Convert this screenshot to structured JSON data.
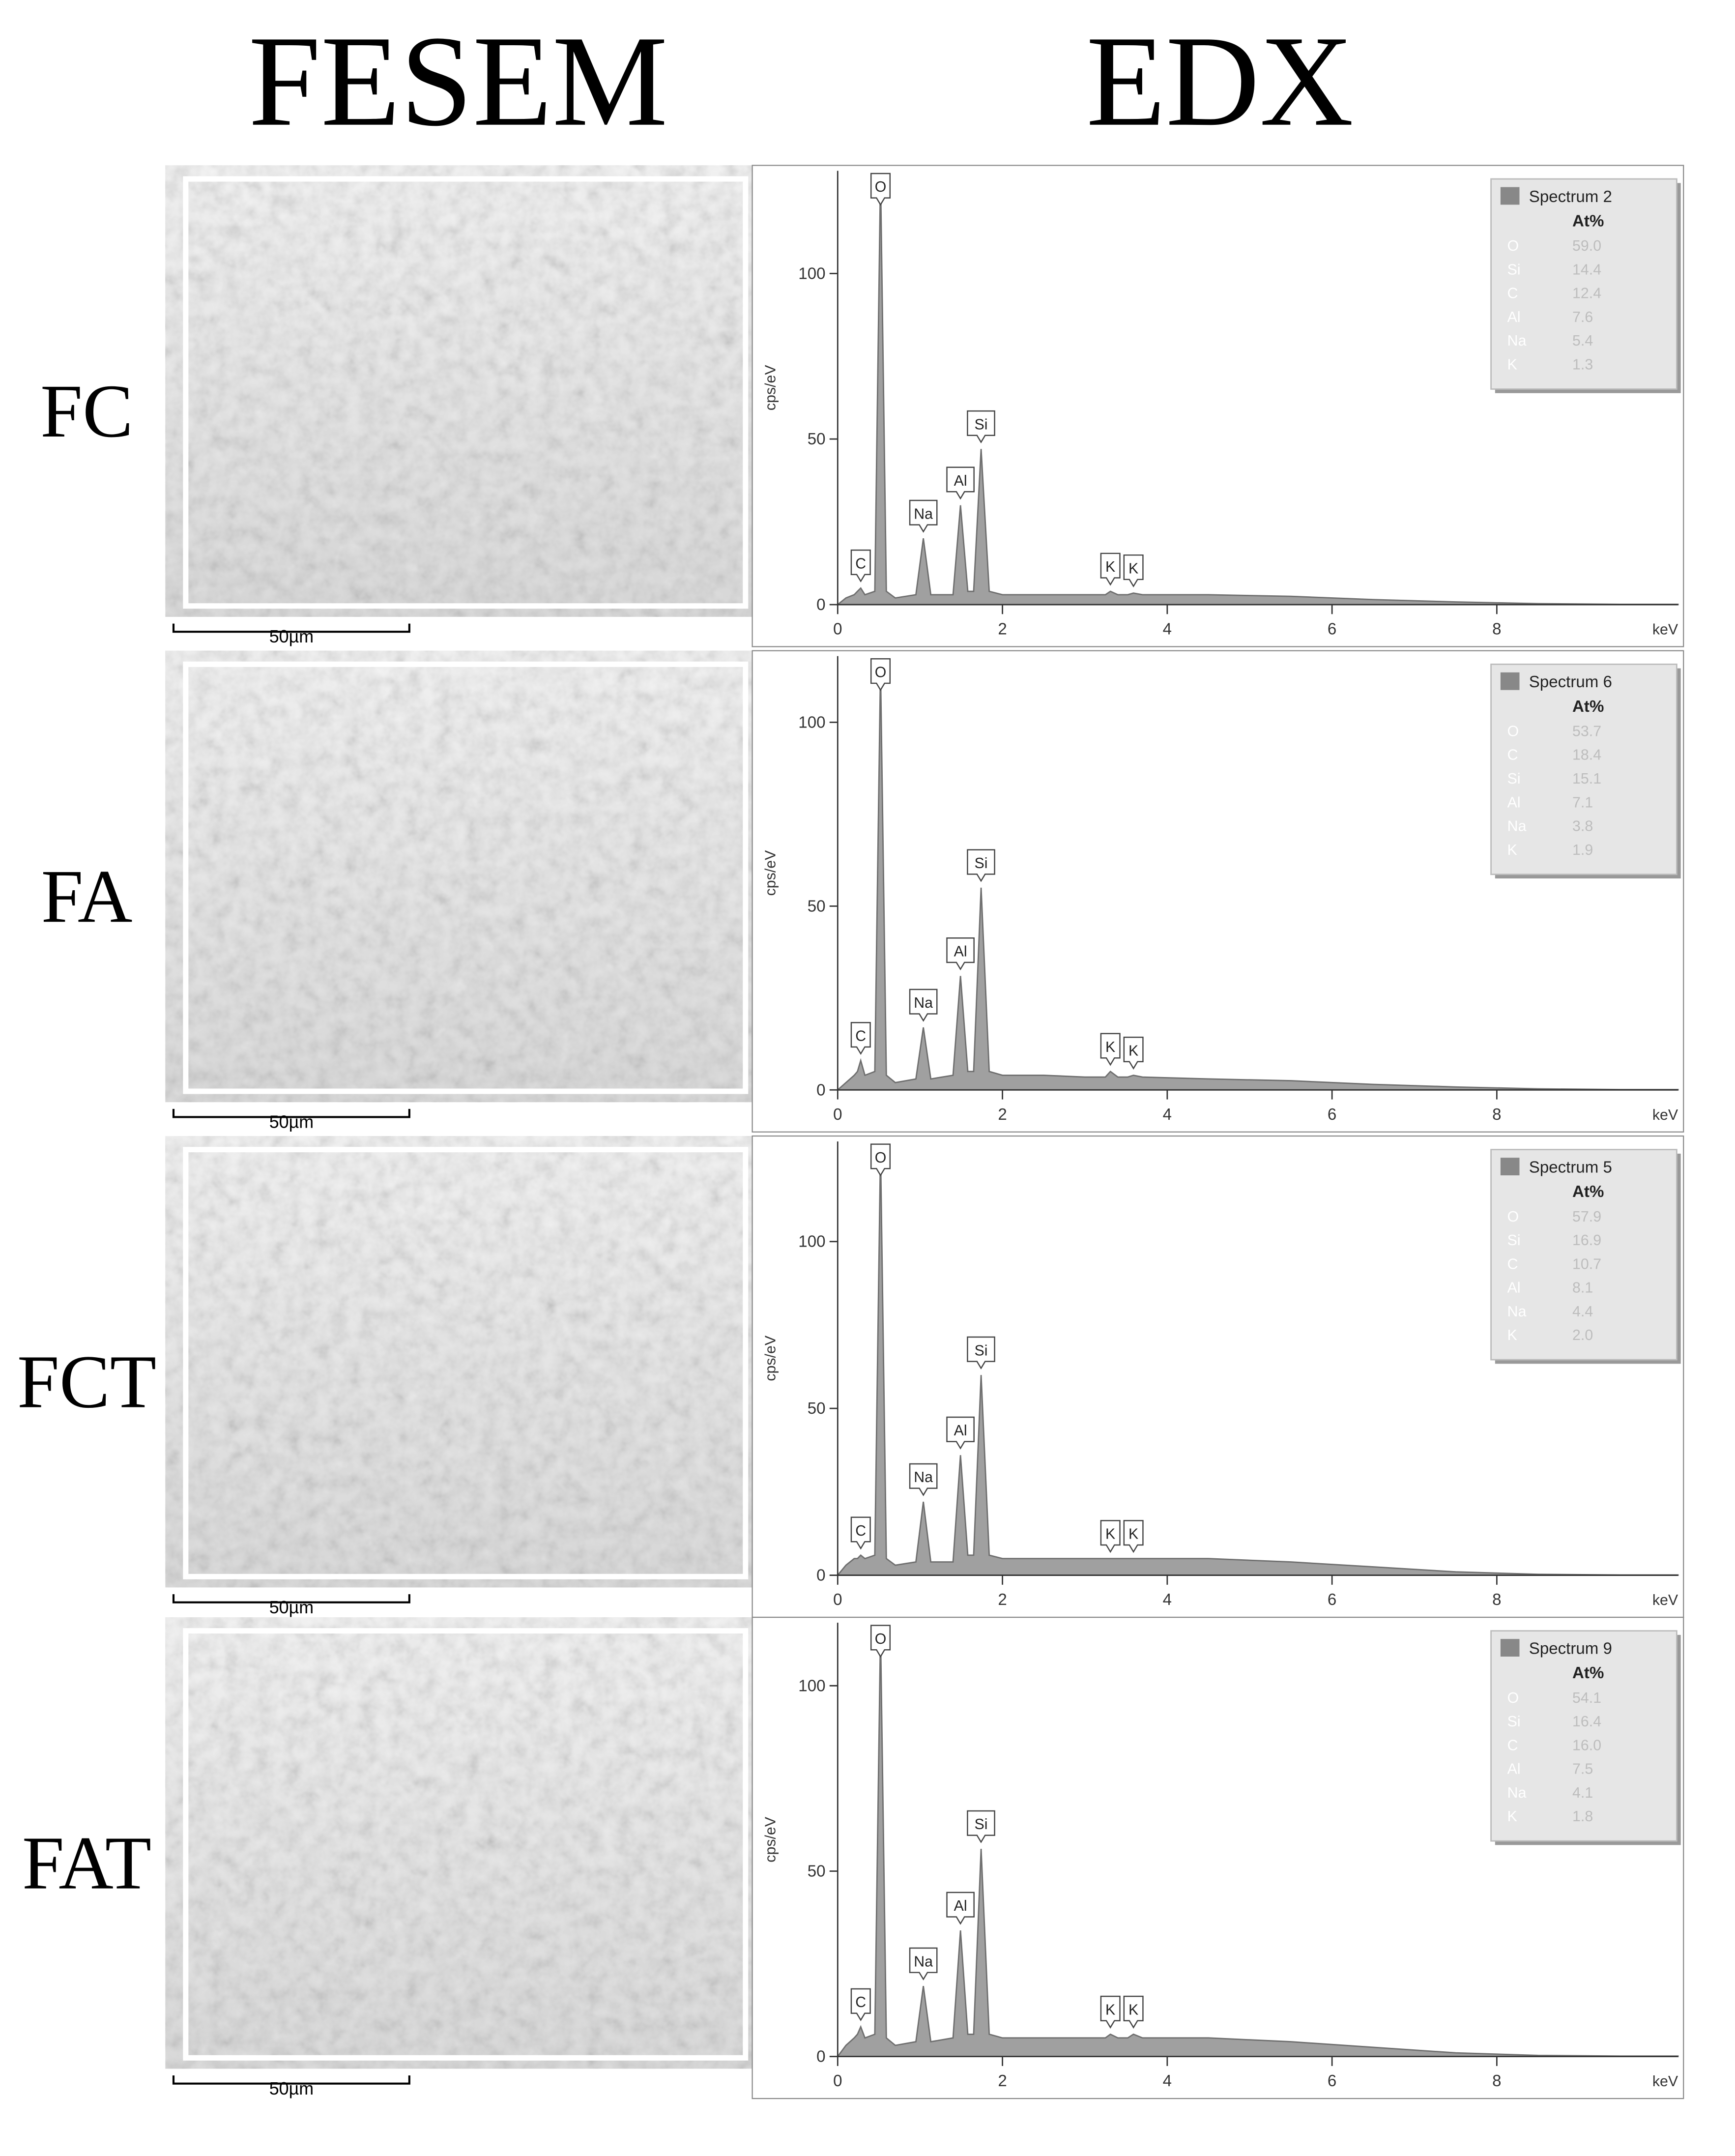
{
  "headers": {
    "left": "FESEM",
    "right": "EDX"
  },
  "panels": [
    {
      "label": "FC",
      "scale_bar": "50µm"
    },
    {
      "label": "FA",
      "scale_bar": "50µm"
    },
    {
      "label": "FCT",
      "scale_bar": "50µm"
    },
    {
      "label": "FAT",
      "scale_bar": "50µm"
    }
  ],
  "chart_data": [
    {
      "type": "area",
      "ylabel": "cps/eV",
      "xlabel": "keV",
      "color": "#a0a0a0",
      "xlim": [
        0,
        10.2
      ],
      "ylim": [
        0,
        131
      ],
      "xticks": [
        0,
        2,
        4,
        6,
        8
      ],
      "yticks": [
        0,
        50,
        100
      ],
      "x": [
        0,
        0.1,
        0.2,
        0.24,
        0.28,
        0.33,
        0.45,
        0.52,
        0.59,
        0.7,
        0.95,
        1.04,
        1.13,
        1.4,
        1.49,
        1.58,
        1.65,
        1.74,
        1.84,
        2.0,
        2.5,
        3.0,
        3.25,
        3.31,
        3.4,
        3.52,
        3.59,
        3.7,
        4.5,
        5.5,
        6.5,
        7.5,
        8.5,
        9.5,
        10.2
      ],
      "values": [
        0,
        2,
        3,
        4,
        5,
        3,
        4,
        130,
        4,
        2,
        3,
        20,
        3,
        3,
        30,
        4,
        4,
        47,
        4,
        3,
        3,
        3,
        3,
        4,
        3,
        3,
        3.5,
        3,
        3,
        2.5,
        1.5,
        0.8,
        0.3,
        0.1,
        0.1
      ],
      "peaks": [
        {
          "label": "C",
          "x": 0.28,
          "y": 5
        },
        {
          "label": "O",
          "x": 0.52,
          "y": 130
        },
        {
          "label": "Na",
          "x": 1.04,
          "y": 20
        },
        {
          "label": "Al",
          "x": 1.49,
          "y": 30
        },
        {
          "label": "Si",
          "x": 1.74,
          "y": 47
        },
        {
          "label": "K",
          "x": 3.31,
          "y": 4
        },
        {
          "label": "K",
          "x": 3.59,
          "y": 3.5
        }
      ],
      "legend": {
        "title": "Spectrum 2",
        "header": "At%",
        "rows": [
          {
            "element": "O",
            "value": "59.0"
          },
          {
            "element": "Si",
            "value": "14.4"
          },
          {
            "element": "C",
            "value": "12.4"
          },
          {
            "element": "Al",
            "value": "7.6"
          },
          {
            "element": "Na",
            "value": "5.4"
          },
          {
            "element": "K",
            "value": "1.3"
          }
        ]
      }
    },
    {
      "type": "area",
      "ylabel": "cps/eV",
      "xlabel": "keV",
      "color": "#a0a0a0",
      "xlim": [
        0,
        10.2
      ],
      "ylim": [
        0,
        118
      ],
      "xticks": [
        0,
        2,
        4,
        6,
        8
      ],
      "yticks": [
        0,
        50,
        100
      ],
      "x": [
        0,
        0.1,
        0.2,
        0.24,
        0.28,
        0.33,
        0.45,
        0.52,
        0.59,
        0.7,
        0.95,
        1.04,
        1.13,
        1.4,
        1.49,
        1.58,
        1.65,
        1.74,
        1.84,
        2.0,
        2.5,
        3.0,
        3.25,
        3.31,
        3.4,
        3.52,
        3.59,
        3.7,
        4.5,
        5.5,
        6.5,
        7.5,
        8.5,
        9.5,
        10.2
      ],
      "values": [
        0,
        2,
        4,
        5,
        8,
        4,
        5,
        115,
        4,
        2,
        3,
        17,
        3,
        4,
        31,
        5,
        5,
        55,
        5,
        4,
        4,
        3.5,
        3.5,
        5,
        3.5,
        3.5,
        4,
        3.5,
        3,
        2.5,
        1.5,
        0.8,
        0.3,
        0.1,
        0.1
      ],
      "peaks": [
        {
          "label": "C",
          "x": 0.28,
          "y": 8
        },
        {
          "label": "O",
          "x": 0.52,
          "y": 115
        },
        {
          "label": "Na",
          "x": 1.04,
          "y": 17
        },
        {
          "label": "Al",
          "x": 1.49,
          "y": 31
        },
        {
          "label": "Si",
          "x": 1.74,
          "y": 55
        },
        {
          "label": "K",
          "x": 3.31,
          "y": 5
        },
        {
          "label": "K",
          "x": 3.59,
          "y": 4
        }
      ],
      "legend": {
        "title": "Spectrum 6",
        "header": "At%",
        "rows": [
          {
            "element": "O",
            "value": "53.7"
          },
          {
            "element": "C",
            "value": "18.4"
          },
          {
            "element": "Si",
            "value": "15.1"
          },
          {
            "element": "Al",
            "value": "7.1"
          },
          {
            "element": "Na",
            "value": "3.8"
          },
          {
            "element": "K",
            "value": "1.9"
          }
        ]
      }
    },
    {
      "type": "area",
      "ylabel": "cps/eV",
      "xlabel": "keV",
      "color": "#a0a0a0",
      "xlim": [
        0,
        10.2
      ],
      "ylim": [
        0,
        130
      ],
      "xticks": [
        0,
        2,
        4,
        6,
        8
      ],
      "yticks": [
        0,
        50,
        100
      ],
      "x": [
        0,
        0.1,
        0.2,
        0.24,
        0.28,
        0.33,
        0.45,
        0.52,
        0.59,
        0.7,
        0.95,
        1.04,
        1.13,
        1.4,
        1.49,
        1.58,
        1.65,
        1.74,
        1.84,
        2.0,
        2.5,
        3.0,
        3.25,
        3.31,
        3.4,
        3.52,
        3.59,
        3.7,
        4.5,
        5.5,
        6.5,
        7.5,
        8.5,
        9.5,
        10.2
      ],
      "values": [
        0,
        3,
        5,
        5,
        6,
        5,
        6,
        128,
        5,
        3,
        4,
        22,
        4,
        4,
        36,
        6,
        6,
        60,
        6,
        5,
        5,
        5,
        5,
        5,
        5,
        5,
        5,
        5,
        5,
        4,
        2.5,
        1,
        0.3,
        0.1,
        0.1
      ],
      "peaks": [
        {
          "label": "C",
          "x": 0.28,
          "y": 6
        },
        {
          "label": "O",
          "x": 0.52,
          "y": 128
        },
        {
          "label": "Na",
          "x": 1.04,
          "y": 22
        },
        {
          "label": "Al",
          "x": 1.49,
          "y": 36
        },
        {
          "label": "Si",
          "x": 1.74,
          "y": 60
        },
        {
          "label": "K",
          "x": 3.31,
          "y": 5
        },
        {
          "label": "K",
          "x": 3.59,
          "y": 5
        }
      ],
      "legend": {
        "title": "Spectrum 5",
        "header": "At%",
        "rows": [
          {
            "element": "O",
            "value": "57.9"
          },
          {
            "element": "Si",
            "value": "16.9"
          },
          {
            "element": "C",
            "value": "10.7"
          },
          {
            "element": "Al",
            "value": "8.1"
          },
          {
            "element": "Na",
            "value": "4.4"
          },
          {
            "element": "K",
            "value": "2.0"
          }
        ]
      }
    },
    {
      "type": "area",
      "ylabel": "cps/eV",
      "xlabel": "keV",
      "color": "#a0a0a0",
      "xlim": [
        0,
        10.2
      ],
      "ylim": [
        0,
        117
      ],
      "xticks": [
        0,
        2,
        4,
        6,
        8
      ],
      "yticks": [
        0,
        50,
        100
      ],
      "x": [
        0,
        0.1,
        0.2,
        0.24,
        0.28,
        0.33,
        0.45,
        0.52,
        0.59,
        0.7,
        0.95,
        1.04,
        1.13,
        1.4,
        1.49,
        1.58,
        1.65,
        1.74,
        1.84,
        2.0,
        2.5,
        3.0,
        3.25,
        3.31,
        3.4,
        3.52,
        3.59,
        3.7,
        4.5,
        5.5,
        6.5,
        7.5,
        8.5,
        9.5,
        10.2
      ],
      "values": [
        0,
        3,
        5,
        6,
        8,
        5,
        6,
        115,
        5,
        3,
        4,
        19,
        4,
        5,
        34,
        6,
        6,
        56,
        6,
        5,
        5,
        5,
        5,
        6,
        5,
        5,
        6,
        5,
        5,
        4,
        2.5,
        1,
        0.3,
        0.1,
        0.1
      ],
      "peaks": [
        {
          "label": "C",
          "x": 0.28,
          "y": 8
        },
        {
          "label": "O",
          "x": 0.52,
          "y": 115
        },
        {
          "label": "Na",
          "x": 1.04,
          "y": 19
        },
        {
          "label": "Al",
          "x": 1.49,
          "y": 34
        },
        {
          "label": "Si",
          "x": 1.74,
          "y": 56
        },
        {
          "label": "K",
          "x": 3.31,
          "y": 6
        },
        {
          "label": "K",
          "x": 3.59,
          "y": 6
        }
      ],
      "legend": {
        "title": "Spectrum 9",
        "header": "At%",
        "rows": [
          {
            "element": "O",
            "value": "54.1"
          },
          {
            "element": "Si",
            "value": "16.4"
          },
          {
            "element": "C",
            "value": "16.0"
          },
          {
            "element": "Al",
            "value": "7.5"
          },
          {
            "element": "Na",
            "value": "4.1"
          },
          {
            "element": "K",
            "value": "1.8"
          }
        ]
      }
    }
  ]
}
